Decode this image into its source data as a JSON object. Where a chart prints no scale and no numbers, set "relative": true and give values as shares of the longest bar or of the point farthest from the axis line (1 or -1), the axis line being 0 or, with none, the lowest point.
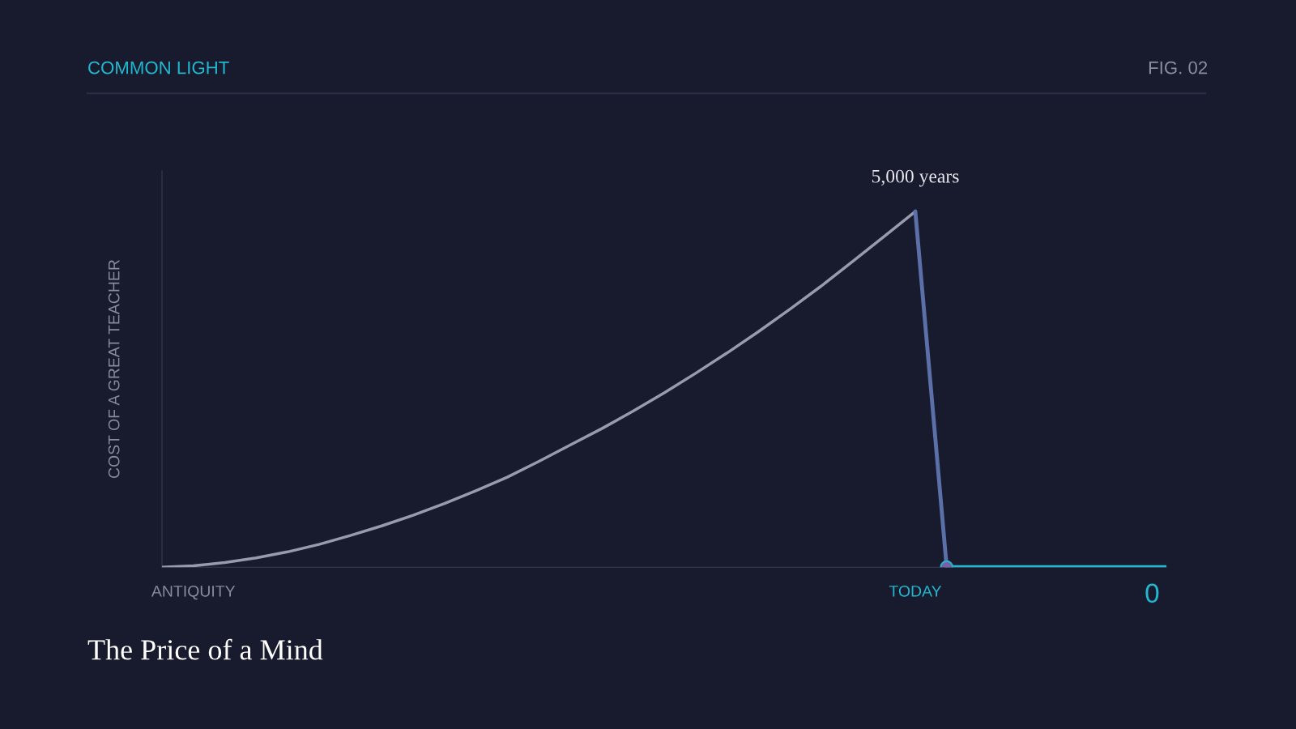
{
  "chart_data": {
    "type": "line",
    "relative": true,
    "title": "The Price of a Mind",
    "subtitle": "COMMON LIGHT",
    "ylabel": "COST OF A GREAT TEACHER",
    "categories": [
      null,
      "ANTIQUITY",
      null,
      null,
      null,
      null,
      null,
      null,
      null,
      null,
      null,
      null,
      null,
      null,
      null,
      null,
      null,
      null,
      null,
      null,
      null,
      null,
      null,
      null,
      "TODAY",
      null,
      null,
      null,
      null,
      null,
      null,
      null,
      null
    ],
    "series": [
      {
        "color": "#9a9aae",
        "values": [
          0,
          0.004,
          0.013,
          0.026,
          0.043,
          0.064,
          0.089,
          0.116,
          0.146,
          0.179,
          0.215,
          0.253,
          0.297,
          0.343,
          0.389,
          0.438,
          0.49,
          0.545,
          0.602,
          0.662,
          0.725,
          0.79,
          0.859,
          0.929,
          1,
          null,
          null,
          null,
          null,
          null,
          null,
          null,
          null
        ]
      },
      {
        "color": "#5b6fa8",
        "values": [
          null,
          null,
          null,
          null,
          null,
          null,
          null,
          null,
          null,
          null,
          null,
          null,
          null,
          null,
          null,
          null,
          null,
          null,
          null,
          null,
          null,
          null,
          null,
          null,
          1,
          0,
          null,
          null,
          null,
          null,
          null,
          null,
          null
        ]
      },
      {
        "color": "#22b8cf",
        "values": [
          null,
          null,
          null,
          null,
          null,
          null,
          null,
          null,
          null,
          null,
          null,
          null,
          null,
          null,
          null,
          null,
          null,
          null,
          null,
          null,
          null,
          null,
          null,
          null,
          null,
          0,
          0,
          0,
          0,
          0,
          0,
          0,
          0
        ]
      },
      {
        "type": "scatter",
        "marker": "circle",
        "color": "#7a5fa8",
        "values": [
          null,
          null,
          null,
          null,
          null,
          null,
          null,
          null,
          null,
          null,
          null,
          null,
          null,
          null,
          null,
          null,
          null,
          null,
          null,
          null,
          null,
          null,
          null,
          null,
          null,
          0,
          null,
          null,
          null,
          null,
          null,
          null,
          null
        ]
      }
    ],
    "annotations": [
      "FIG. 02",
      {
        "text": "5,000 years",
        "y": 1
      },
      {
        "text": "0",
        "y": 0
      }
    ],
    "grid": false,
    "legend": false
  }
}
